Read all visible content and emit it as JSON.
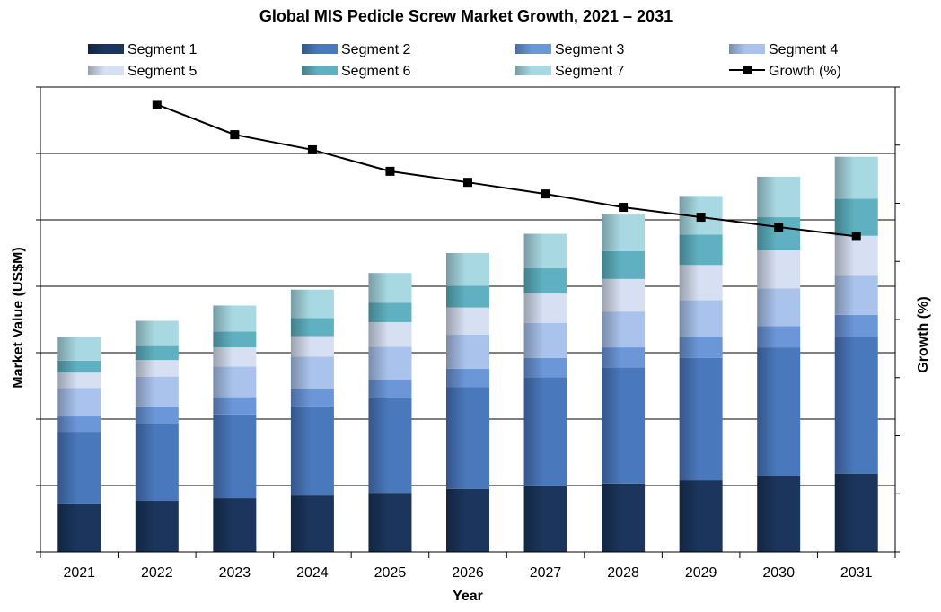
{
  "chart_data": {
    "type": "bar",
    "stacked": true,
    "title": "Global MIS Pedicle Screw Market Growth, 2021 – 2031",
    "xlabel": "Year",
    "ylabel": "Market Value (US$M)",
    "y2label": "Growth (%)",
    "categories": [
      "2021",
      "2022",
      "2023",
      "2024",
      "2025",
      "2026",
      "2027",
      "2028",
      "2029",
      "2030",
      "2031"
    ],
    "ylim": [
      0,
      7
    ],
    "y2lim": [
      0,
      8
    ],
    "series": [
      {
        "name": "Segment 1",
        "values": [
          0.72,
          0.77,
          0.81,
          0.85,
          0.89,
          0.95,
          0.99,
          1.03,
          1.08,
          1.14,
          1.18
        ],
        "color": "#1b355c"
      },
      {
        "name": "Segment 2",
        "values": [
          1.09,
          1.16,
          1.26,
          1.34,
          1.43,
          1.53,
          1.64,
          1.75,
          1.84,
          1.94,
          2.06
        ],
        "color": "#4a78bd"
      },
      {
        "name": "Segment 3",
        "values": [
          0.23,
          0.26,
          0.26,
          0.26,
          0.27,
          0.28,
          0.29,
          0.3,
          0.31,
          0.32,
          0.33
        ],
        "color": "#6b96d8"
      },
      {
        "name": "Segment 4",
        "values": [
          0.43,
          0.45,
          0.46,
          0.49,
          0.5,
          0.51,
          0.53,
          0.54,
          0.56,
          0.57,
          0.59
        ],
        "color": "#a9c3ec"
      },
      {
        "name": "Segment 5",
        "values": [
          0.23,
          0.25,
          0.29,
          0.31,
          0.37,
          0.41,
          0.44,
          0.49,
          0.53,
          0.57,
          0.6
        ],
        "color": "#d6e0f2"
      },
      {
        "name": "Segment 6",
        "values": [
          0.18,
          0.21,
          0.24,
          0.27,
          0.29,
          0.33,
          0.38,
          0.42,
          0.46,
          0.5,
          0.56
        ],
        "color": "#5fb1c1"
      },
      {
        "name": "Segment 7",
        "values": [
          0.35,
          0.38,
          0.39,
          0.43,
          0.45,
          0.49,
          0.52,
          0.55,
          0.58,
          0.61,
          0.63
        ],
        "color": "#a8d9e3"
      }
    ],
    "line_series": {
      "name": "Growth (%)",
      "axis": "right",
      "values": [
        null,
        7.7,
        7.18,
        6.92,
        6.55,
        6.36,
        6.16,
        5.93,
        5.76,
        5.59,
        5.43
      ],
      "color": "#000000"
    },
    "legend": {
      "placement": "top",
      "columns": 4
    },
    "grid": {
      "y": true,
      "x": false
    }
  }
}
